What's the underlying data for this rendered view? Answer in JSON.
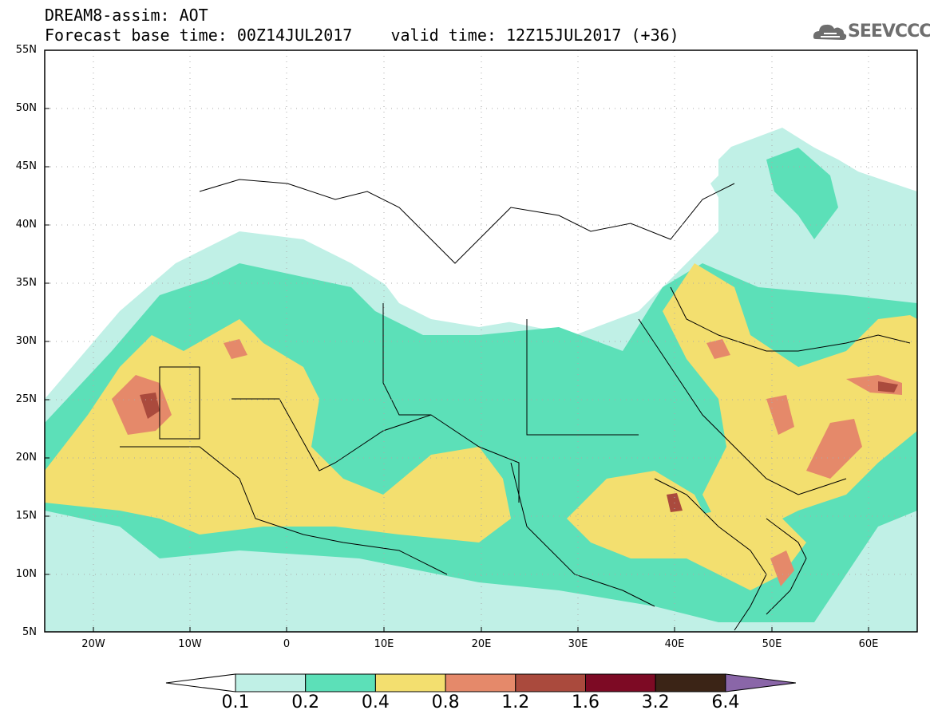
{
  "header": {
    "title_line1": "DREAM8-assim: AOT",
    "title_line2": "Forecast base time: 00Z14JUL2017    valid time: 12Z15JUL2017 (+36)"
  },
  "logo": {
    "text": "SEEVCCC",
    "icon": "cloud-logo-icon"
  },
  "map": {
    "lat_labels": [
      "55N",
      "50N",
      "45N",
      "40N",
      "35N",
      "30N",
      "25N",
      "20N",
      "15N",
      "10N",
      "5N"
    ],
    "lon_labels": [
      "20W",
      "10W",
      "0",
      "10E",
      "20E",
      "30E",
      "40E",
      "50E",
      "60E"
    ]
  },
  "colorbar": {
    "labels": [
      "0.1",
      "0.2",
      "0.4",
      "0.8",
      "1.2",
      "1.6",
      "3.2",
      "6.4"
    ],
    "colors": [
      "#ffffff",
      "#c0f0e6",
      "#5ce0b8",
      "#f3df6f",
      "#e5896a",
      "#aa4a3d",
      "#7d0a24",
      "#3b2416",
      "#8a66a8"
    ]
  }
}
